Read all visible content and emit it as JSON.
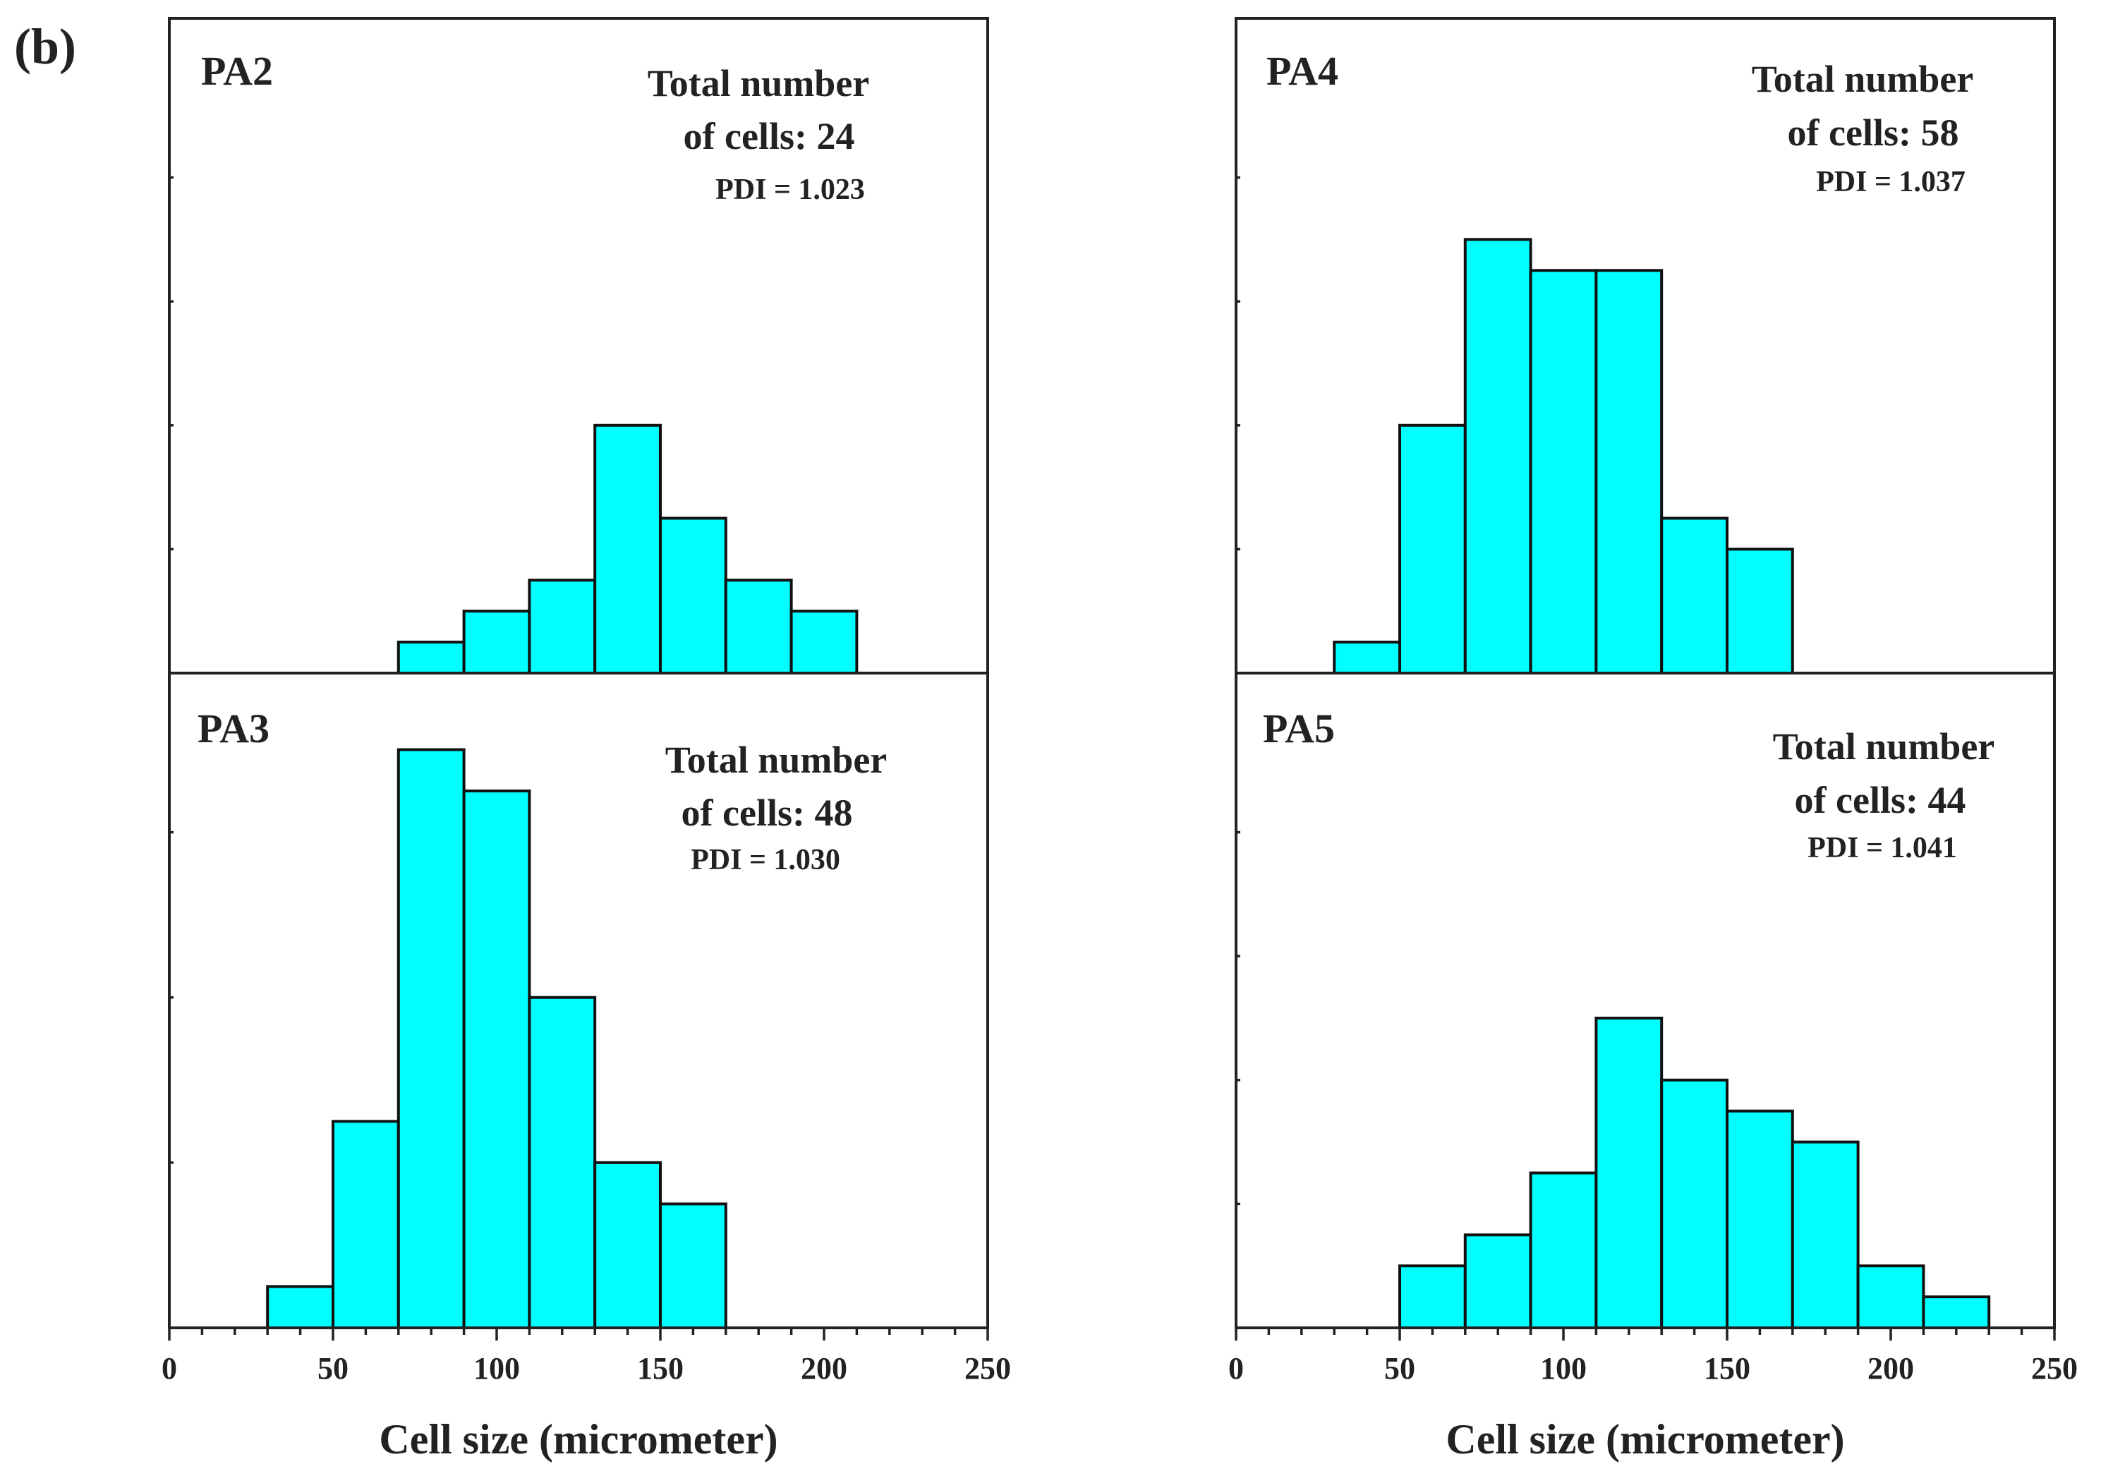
{
  "figure_label": "(b)",
  "chart_data": [
    {
      "type": "bar",
      "panel": "PA2",
      "annotation": {
        "line1": "Total number",
        "line2": "of cells: 24",
        "pdi": "PDI = 1.023"
      },
      "bins": [
        [
          70,
          90
        ],
        [
          90,
          110
        ],
        [
          110,
          130
        ],
        [
          130,
          150
        ],
        [
          150,
          170
        ],
        [
          170,
          190
        ],
        [
          190,
          210
        ]
      ],
      "values": [
        1,
        2,
        3,
        8,
        5,
        3,
        2
      ],
      "xlim": [
        0,
        250
      ],
      "ylim": [
        0,
        20
      ],
      "xticks": [
        0,
        50,
        100,
        150,
        200,
        250
      ],
      "xlabel": "",
      "ylabel": ""
    },
    {
      "type": "bar",
      "panel": "PA4",
      "annotation": {
        "line1": "Total number",
        "line2": "of cells: 58",
        "pdi": "PDI = 1.037"
      },
      "bins": [
        [
          30,
          50
        ],
        [
          50,
          70
        ],
        [
          70,
          90
        ],
        [
          90,
          110
        ],
        [
          110,
          130
        ],
        [
          130,
          150
        ],
        [
          150,
          170
        ]
      ],
      "values": [
        1,
        8,
        14,
        13,
        13,
        5,
        4
      ],
      "xlim": [
        0,
        250
      ],
      "ylim": [
        0,
        20
      ],
      "xticks": [
        0,
        50,
        100,
        150,
        200,
        250
      ],
      "xlabel": "",
      "ylabel": ""
    },
    {
      "type": "bar",
      "panel": "PA3",
      "annotation": {
        "line1": "Total number",
        "line2": "of cells: 48",
        "pdi": "PDI = 1.030"
      },
      "bins": [
        [
          30,
          50
        ],
        [
          50,
          70
        ],
        [
          70,
          90
        ],
        [
          90,
          110
        ],
        [
          110,
          130
        ],
        [
          130,
          150
        ],
        [
          150,
          170
        ]
      ],
      "values": [
        1,
        5,
        14,
        13,
        8,
        4,
        3
      ],
      "xlim": [
        0,
        250
      ],
      "ylim": [
        0,
        15
      ],
      "xticks": [
        0,
        50,
        100,
        150,
        200,
        250
      ],
      "xlabel": "Cell size (micrometer)",
      "ylabel": ""
    },
    {
      "type": "bar",
      "panel": "PA5",
      "annotation": {
        "line1": "Total number",
        "line2": "of cells: 44",
        "pdi": "PDI = 1.041"
      },
      "bins": [
        [
          50,
          70
        ],
        [
          70,
          90
        ],
        [
          90,
          110
        ],
        [
          110,
          130
        ],
        [
          130,
          150
        ],
        [
          150,
          170
        ],
        [
          170,
          190
        ],
        [
          190,
          210
        ],
        [
          210,
          230
        ]
      ],
      "values": [
        2,
        3,
        5,
        10,
        8,
        7,
        6,
        2,
        1
      ],
      "xlim": [
        0,
        250
      ],
      "ylim": [
        0,
        20
      ],
      "xticks": [
        0,
        50,
        100,
        150,
        200,
        250
      ],
      "xlabel": "Cell size (micrometer)",
      "ylabel": ""
    }
  ]
}
